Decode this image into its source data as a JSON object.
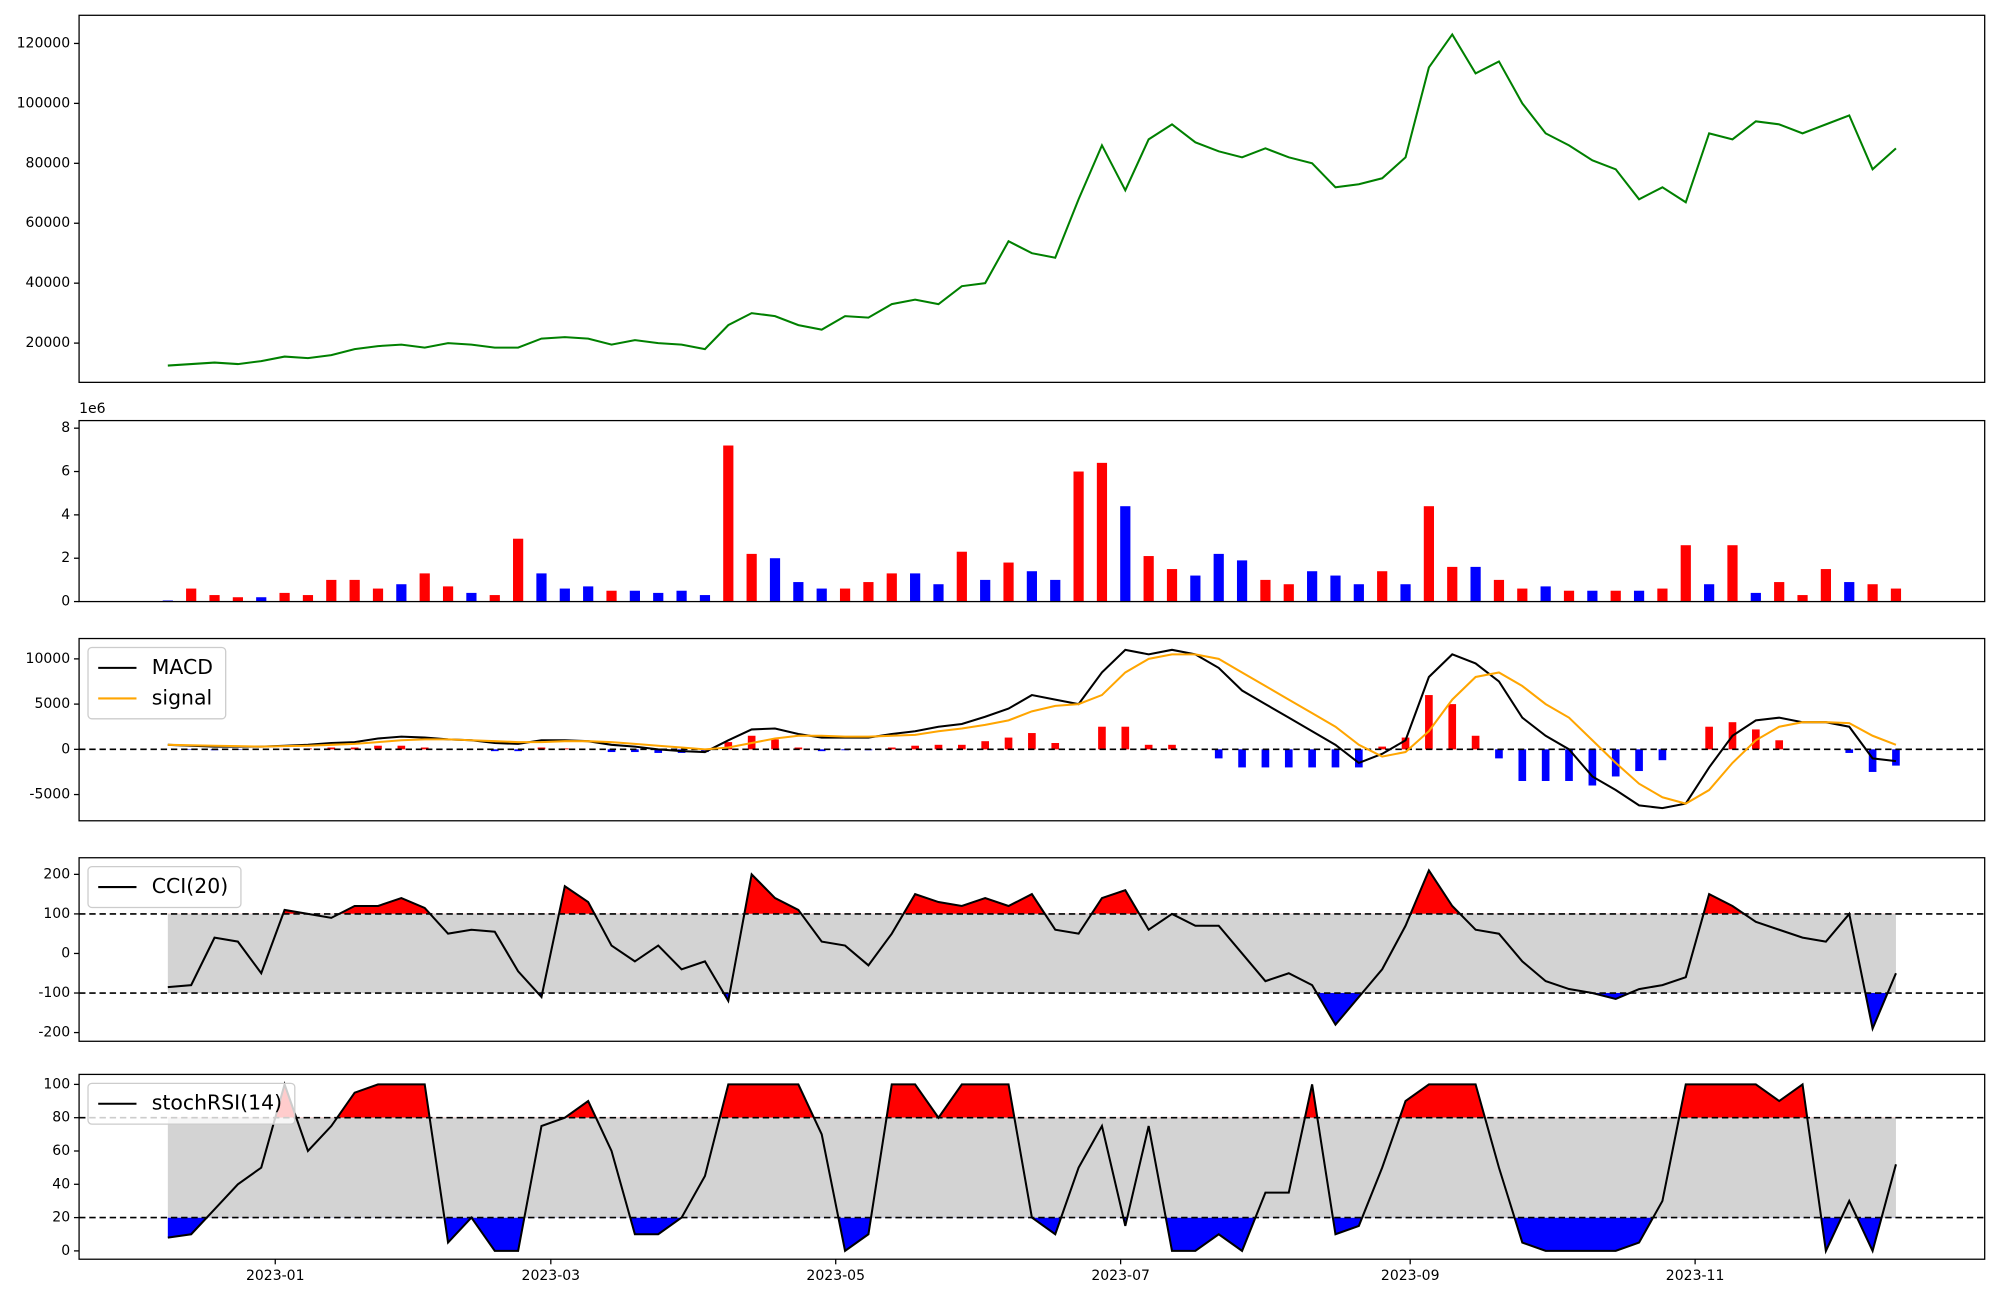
{
  "chart_data": [
    {
      "type": "line",
      "series": [
        {
          "color": "green",
          "values": [
            12500,
            13000,
            13500,
            13000,
            14000,
            15500,
            15000,
            16000,
            18000,
            19000,
            19500,
            18500,
            20000,
            19500,
            18500,
            18500,
            21500,
            22000,
            21500,
            19500,
            21000,
            20000,
            19500,
            18000,
            26000,
            30000,
            29000,
            26000,
            24500,
            29000,
            28500,
            33000,
            34500,
            33000,
            39000,
            40000,
            54000,
            50000,
            48500,
            68000,
            86000,
            71000,
            88000,
            93000,
            87000,
            84000,
            82000,
            85000,
            82000,
            80000,
            72000,
            73000,
            75000,
            82000,
            112000,
            123000,
            110000,
            114000,
            100000,
            90000,
            86000,
            81000,
            78000,
            68000,
            72000,
            67000,
            90000,
            88000,
            94000,
            93000,
            90000,
            93000,
            96000,
            78000,
            85000
          ]
        }
      ],
      "ylim": [
        6900,
        129400
      ],
      "yticks": [
        20000,
        40000,
        60000,
        80000,
        100000,
        120000
      ]
    },
    {
      "type": "bar",
      "values": [
        0.05,
        0.6,
        0.3,
        0.2,
        0.2,
        0.4,
        0.3,
        1.0,
        1.0,
        0.6,
        0.8,
        1.3,
        0.7,
        0.4,
        0.3,
        2.9,
        1.3,
        0.6,
        0.7,
        0.5,
        0.5,
        0.4,
        0.5,
        0.3,
        7.2,
        2.2,
        2.0,
        0.9,
        0.6,
        0.6,
        0.9,
        1.3,
        1.3,
        0.8,
        2.3,
        1.0,
        1.8,
        1.4,
        1.0,
        6.0,
        6.4,
        4.4,
        2.1,
        1.5,
        1.2,
        2.2,
        1.9,
        1.0,
        0.8,
        1.4,
        1.2,
        0.8,
        1.4,
        0.8,
        4.4,
        1.6,
        1.6,
        1.0,
        0.6,
        0.7,
        0.5,
        0.5,
        0.5,
        0.5,
        0.6,
        2.6,
        0.8,
        2.6,
        0.4,
        0.9,
        0.3,
        1.5,
        0.9,
        0.8,
        0.6
      ],
      "colors": [
        "blue",
        "red",
        "red",
        "red",
        "blue",
        "red",
        "red",
        "red",
        "red",
        "red",
        "blue",
        "red",
        "red",
        "blue",
        "red",
        "red",
        "blue",
        "blue",
        "blue",
        "red",
        "blue",
        "blue",
        "blue",
        "blue",
        "red",
        "red",
        "blue",
        "blue",
        "blue",
        "red",
        "red",
        "red",
        "blue",
        "blue",
        "red",
        "blue",
        "red",
        "blue",
        "blue",
        "red",
        "red",
        "blue",
        "red",
        "red",
        "blue",
        "blue",
        "blue",
        "red",
        "red",
        "blue",
        "blue",
        "blue",
        "red",
        "blue",
        "red",
        "red",
        "blue",
        "red",
        "red",
        "blue",
        "red",
        "blue",
        "red",
        "blue",
        "red",
        "red",
        "blue",
        "red",
        "blue",
        "red",
        "red",
        "red",
        "blue",
        "red",
        "red"
      ],
      "ylim": [
        0,
        8.35
      ],
      "yticks": [
        0,
        2,
        4,
        6,
        8
      ],
      "offset_label": "1e6"
    },
    {
      "type": "line",
      "series": [
        {
          "name": "MACD",
          "color": "black",
          "values": [
            500,
            400,
            300,
            300,
            300,
            400,
            500,
            700,
            800,
            1200,
            1400,
            1300,
            1100,
            1000,
            700,
            600,
            1000,
            1000,
            900,
            500,
            300,
            0,
            -200,
            -300,
            1000,
            2200,
            2300,
            1700,
            1300,
            1300,
            1300,
            1700,
            2000,
            2500,
            2800,
            3600,
            4500,
            6000,
            5500,
            5000,
            8500,
            11000,
            10500,
            11000,
            10500,
            9000,
            6500,
            5000,
            3500,
            2000,
            500,
            -1500,
            -500,
            1000,
            8000,
            10500,
            9500,
            7500,
            3500,
            1500,
            0,
            -3000,
            -4500,
            -6200,
            -6500,
            -6000,
            -2000,
            1500,
            3200,
            3500,
            3000,
            3000,
            2500,
            -1000,
            -1300
          ]
        },
        {
          "name": "signal",
          "color": "orange",
          "values": [
            500,
            450,
            400,
            350,
            300,
            350,
            400,
            500,
            600,
            800,
            1000,
            1100,
            1100,
            1000,
            900,
            800,
            800,
            900,
            900,
            800,
            600,
            400,
            200,
            0,
            200,
            700,
            1200,
            1500,
            1500,
            1400,
            1400,
            1500,
            1600,
            2000,
            2300,
            2700,
            3200,
            4200,
            4800,
            5000,
            6000,
            8500,
            10000,
            10500,
            10500,
            10000,
            8500,
            7000,
            5500,
            4000,
            2500,
            500,
            -800,
            -300,
            2000,
            5500,
            8000,
            8500,
            7000,
            5000,
            3500,
            1000,
            -1500,
            -3800,
            -5300,
            -6000,
            -4500,
            -1500,
            1000,
            2500,
            3000,
            3000,
            2900,
            1500,
            500
          ]
        }
      ],
      "histogram": {
        "up_color": "red",
        "down_color": "blue",
        "values": [
          0,
          -50,
          -100,
          -50,
          0,
          50,
          100,
          200,
          200,
          400,
          400,
          200,
          0,
          0,
          -200,
          -200,
          200,
          100,
          0,
          -300,
          -300,
          -400,
          -400,
          -300,
          800,
          1500,
          1100,
          200,
          -200,
          -100,
          -100,
          200,
          400,
          500,
          500,
          900,
          1300,
          1800,
          700,
          0,
          2500,
          2500,
          500,
          500,
          0,
          -1000,
          -2000,
          -2000,
          -2000,
          -2000,
          -2000,
          -2000,
          300,
          1300,
          6000,
          5000,
          1500,
          -1000,
          -3500,
          -3500,
          -3500,
          -4000,
          -3000,
          -2400,
          -1200,
          0,
          2500,
          3000,
          2200,
          1000,
          0,
          0,
          -400,
          -2500,
          -1800
        ]
      },
      "hlines": [
        0
      ],
      "ylim": [
        -7900,
        12250
      ],
      "yticks": [
        -5000,
        0,
        5000,
        10000
      ],
      "legend": "upper left"
    },
    {
      "type": "line",
      "series": [
        {
          "name": "CCI(20)",
          "color": "black",
          "values": [
            -85,
            -80,
            40,
            30,
            -50,
            110,
            100,
            90,
            120,
            120,
            140,
            115,
            50,
            60,
            55,
            -45,
            -110,
            170,
            130,
            20,
            -20,
            20,
            -40,
            -20,
            -120,
            200,
            140,
            110,
            30,
            20,
            -30,
            50,
            150,
            130,
            120,
            140,
            120,
            150,
            60,
            50,
            140,
            160,
            60,
            100,
            70,
            70,
            0,
            -70,
            -50,
            -80,
            -180,
            -110,
            -40,
            70,
            210,
            120,
            60,
            50,
            -20,
            -70,
            -90,
            -100,
            -115,
            -90,
            -80,
            -60,
            150,
            120,
            80,
            60,
            40,
            30,
            100,
            -190,
            -50
          ]
        }
      ],
      "thresholds": [
        -100,
        100
      ],
      "band_color": "lightgray",
      "fill_above": "red",
      "fill_below": "blue",
      "ylim": [
        -222,
        242
      ],
      "yticks": [
        -200,
        -100,
        0,
        100,
        200
      ],
      "legend": "upper left"
    },
    {
      "type": "line",
      "series": [
        {
          "name": "stochRSI(14)",
          "color": "black",
          "values": [
            8,
            10,
            25,
            40,
            50,
            100,
            60,
            75,
            95,
            100,
            100,
            100,
            5,
            20,
            0,
            0,
            75,
            80,
            90,
            60,
            10,
            10,
            20,
            45,
            100,
            100,
            100,
            100,
            70,
            0,
            10,
            100,
            100,
            80,
            100,
            100,
            100,
            20,
            10,
            50,
            75,
            15,
            75,
            0,
            0,
            10,
            0,
            35,
            35,
            100,
            10,
            15,
            50,
            90,
            100,
            100,
            100,
            50,
            5,
            0,
            0,
            0,
            0,
            5,
            30,
            100,
            100,
            100,
            100,
            90,
            100,
            0,
            30,
            0,
            52
          ]
        }
      ],
      "thresholds": [
        20,
        80
      ],
      "band_color": "lightgray",
      "fill_above": "red",
      "fill_below": "blue",
      "ylim": [
        -5,
        106
      ],
      "yticks": [
        0,
        20,
        40,
        60,
        80,
        100
      ],
      "legend": "upper left",
      "x": [
        -23,
        -18,
        -13,
        -8,
        -3,
        2,
        7,
        12,
        17,
        22,
        27,
        32,
        37,
        42,
        47,
        52,
        57,
        62,
        67,
        72,
        77,
        82,
        87,
        92,
        97,
        102,
        107,
        112,
        117,
        122,
        127,
        132,
        137,
        142,
        147,
        152,
        157,
        162,
        167,
        172,
        177,
        182,
        187,
        192,
        197,
        202,
        207,
        212,
        217,
        222,
        227,
        232,
        237,
        242,
        247,
        252,
        257,
        262,
        267,
        272,
        277,
        282,
        287,
        292,
        297,
        302,
        307,
        312,
        317,
        322,
        327,
        332,
        337,
        342,
        347
      ],
      "xlim": [
        -42,
        366
      ],
      "xticks": [
        {
          "value": 0,
          "label": "2023-01"
        },
        {
          "value": 59,
          "label": "2023-03"
        },
        {
          "value": 120,
          "label": "2023-05"
        },
        {
          "value": 181,
          "label": "2023-07"
        },
        {
          "value": 243,
          "label": "2023-09"
        },
        {
          "value": 304,
          "label": "2023-11"
        }
      ]
    }
  ]
}
